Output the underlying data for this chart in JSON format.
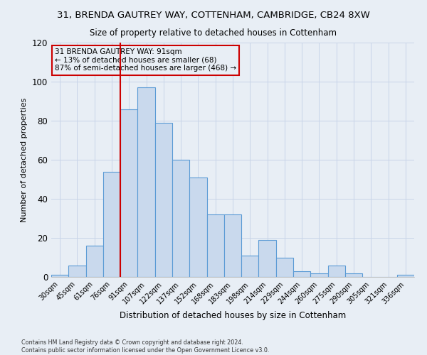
{
  "title": "31, BRENDA GAUTREY WAY, COTTENHAM, CAMBRIDGE, CB24 8XW",
  "subtitle": "Size of property relative to detached houses in Cottenham",
  "xlabel": "Distribution of detached houses by size in Cottenham",
  "ylabel": "Number of detached properties",
  "bar_labels": [
    "30sqm",
    "45sqm",
    "61sqm",
    "76sqm",
    "91sqm",
    "107sqm",
    "122sqm",
    "137sqm",
    "152sqm",
    "168sqm",
    "183sqm",
    "198sqm",
    "214sqm",
    "229sqm",
    "244sqm",
    "260sqm",
    "275sqm",
    "290sqm",
    "305sqm",
    "321sqm",
    "336sqm"
  ],
  "bar_heights": [
    1,
    6,
    16,
    54,
    86,
    97,
    79,
    60,
    51,
    32,
    32,
    11,
    19,
    10,
    3,
    2,
    6,
    2,
    0,
    0,
    1
  ],
  "bar_color": "#c9d9ed",
  "bar_edge_color": "#5b9bd5",
  "vline_x_index": 4,
  "vline_color": "#cc0000",
  "annotation_line1": "31 BRENDA GAUTREY WAY: 91sqm",
  "annotation_line2": "← 13% of detached houses are smaller (68)",
  "annotation_line3": "87% of semi-detached houses are larger (468) →",
  "annotation_box_color": "#cc0000",
  "ylim": [
    0,
    120
  ],
  "yticks": [
    0,
    20,
    40,
    60,
    80,
    100,
    120
  ],
  "grid_color": "#c8d4e8",
  "bg_color": "#e8eef5",
  "footer_line1": "Contains HM Land Registry data © Crown copyright and database right 2024.",
  "footer_line2": "Contains public sector information licensed under the Open Government Licence v3.0."
}
